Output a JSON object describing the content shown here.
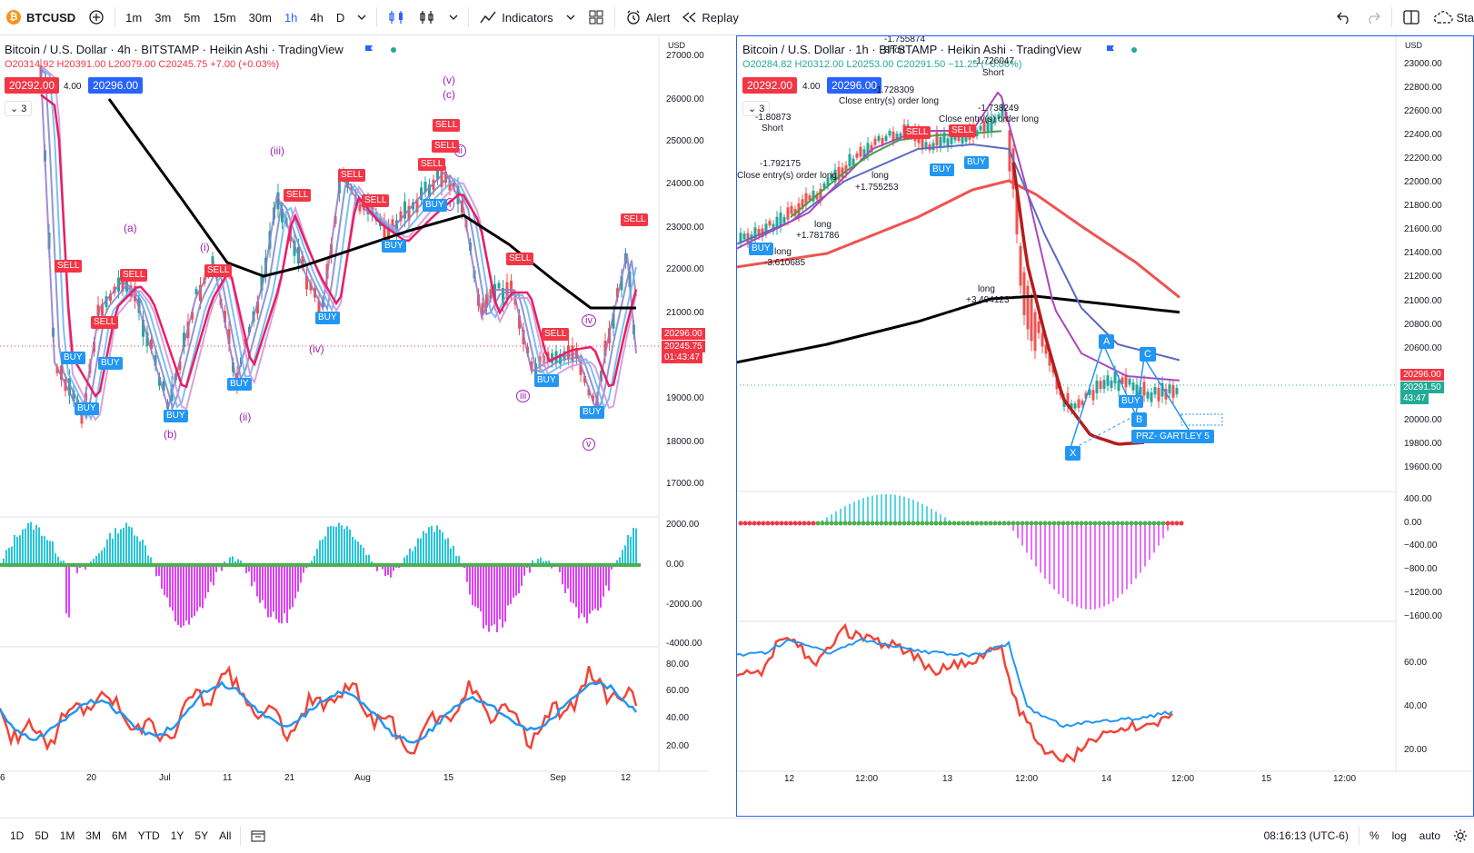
{
  "toolbar": {
    "symbol": "BTCUSD",
    "timeframes": [
      "1m",
      "3m",
      "5m",
      "15m",
      "30m",
      "1h",
      "4h",
      "D"
    ],
    "active_timeframe": "1h",
    "indicators_label": "Indicators",
    "alert_label": "Alert",
    "replay_label": "Replay",
    "right_truncated": "Sta"
  },
  "bottombar": {
    "ranges": [
      "1D",
      "5D",
      "1M",
      "3M",
      "6M",
      "YTD",
      "1Y",
      "5Y",
      "All"
    ],
    "time": "08:16:13 (UTC-6)",
    "percent_label": "%",
    "log_label": "log",
    "auto_label": "auto"
  },
  "left": {
    "title": "Bitcoin / U.S. Dollar · 4h · BITSTAMP · Heikin Ashi · TradingView",
    "ohlc": "O20314.92 H20391.00 L20079.00 C20245.75 +7.00 (+0.03%)",
    "bid": "20292.00",
    "spread": "4.00",
    "ask": "20296.00",
    "collapse": "3",
    "currency": "USD",
    "price_axis": [
      "27000.00",
      "26000.00",
      "25000.00",
      "24000.00",
      "23000.00",
      "22000.00",
      "21000.00",
      "19000.00",
      "18000.00",
      "17000.00"
    ],
    "tags": {
      "a": "20296.00",
      "b": "20245.75",
      "c": "01:43:47"
    },
    "osc_axis": [
      "2000.00",
      "0.00",
      "-2000.00",
      "-4000.00"
    ],
    "rsi_axis": [
      "80.00",
      "60.00",
      "40.00",
      "20.00"
    ],
    "time_axis": [
      "6",
      "20",
      "Jul",
      "11",
      "21",
      "Aug",
      "15",
      "Sep",
      "12"
    ],
    "waves": [
      "(a)",
      "(b)",
      "(i)",
      "(ii)",
      "(iii)",
      "(iv)",
      "(v)",
      "(c)",
      "i",
      "ii",
      "iii",
      "iv",
      "v"
    ],
    "sell": "SELL",
    "buy": "BUY"
  },
  "right": {
    "title": "Bitcoin / U.S. Dollar · 1h · BITSTAMP · Heikin Ashi · TradingView",
    "ohlc": "O20284.82 H20312.00 L20253.00 C20291.50 −11.25 (−0.06%)",
    "bid": "20292.00",
    "spread": "4.00",
    "ask": "20296.00",
    "collapse": "3",
    "currency": "USD",
    "price_axis": [
      "23000.00",
      "22800.00",
      "22600.00",
      "22400.00",
      "22200.00",
      "22000.00",
      "21800.00",
      "21600.00",
      "21400.00",
      "21200.00",
      "21000.00",
      "20800.00",
      "20600.00",
      "20000.00",
      "19800.00",
      "19600.00"
    ],
    "tags": {
      "a": "20296.00",
      "b": "20291.50",
      "c": "43:47"
    },
    "osc_axis": [
      "400.00",
      "0.00",
      "−400.00",
      "−800.00",
      "−1200.00",
      "−1600.00"
    ],
    "rsi_axis": [
      "60.00",
      "40.00",
      "20.00"
    ],
    "time_axis": [
      "12",
      "12:00",
      "13",
      "12:00",
      "14",
      "12:00",
      "15",
      "12:00"
    ],
    "annotations": {
      "short1": "Short",
      "n1": "-1.80873",
      "n2": "-1.792175",
      "close1": "Close entry(s) order long",
      "n3": "-1.728309",
      "close2": "Close entry(s) order long",
      "n4": "-1.738249",
      "close3": "Close entry(s) order long",
      "long1": "long",
      "n5": "+1.755253",
      "long2": "long",
      "n6": "+1.781786",
      "long3": "long",
      "n7": "-3.610685",
      "long4": "long",
      "n8": "+3.494123",
      "short2": "Short",
      "top_n": "-1.755874",
      "top_short": "Short",
      "top_n2": "-1.726047"
    },
    "pattern_points": [
      "X",
      "A",
      "B",
      "C"
    ],
    "prz": "PRZ- GARTLEY 5",
    "sell": "SELL",
    "buy": "BUY"
  },
  "colors": {
    "accent": "#2962ff",
    "sell": "#f23645",
    "buy": "#2196f3",
    "ma_black": "#000000",
    "ma_red": "#e91e63",
    "wave": "#9c27b0",
    "osc_cyan": "#26c6da",
    "osc_magenta": "#e040fb",
    "rsi_blue": "#2196f3",
    "rsi_red": "#f44336"
  }
}
